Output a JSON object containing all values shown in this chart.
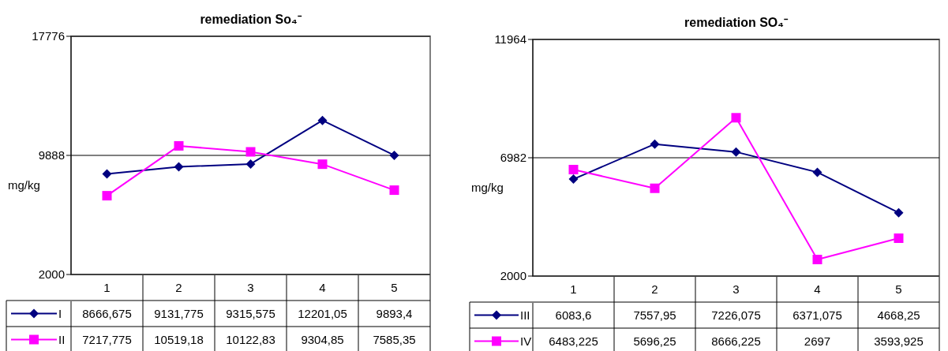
{
  "chart_data": [
    {
      "type": "line",
      "title": "remediation So₄⁻",
      "ylabel": "mg/kg",
      "categories": [
        "1",
        "2",
        "3",
        "4",
        "5"
      ],
      "ylim": [
        2000,
        17776
      ],
      "yticks": [
        2000,
        9888,
        17776
      ],
      "grid": "y",
      "legend": "bottom",
      "series": [
        {
          "name": "I",
          "color": "#000080",
          "marker": "diamond",
          "values": [
            8666.675,
            9131.775,
            9315.575,
            12201.05,
            9893.4
          ],
          "value_labels": [
            "8666,675",
            "9131,775",
            "9315,575",
            "12201,05",
            "9893,4"
          ]
        },
        {
          "name": "II",
          "color": "#ff00ff",
          "marker": "square",
          "values": [
            7217.775,
            10519.18,
            10122.83,
            9304.85,
            7585.35
          ],
          "value_labels": [
            "7217,775",
            "10519,18",
            "10122,83",
            "9304,85",
            "7585,35"
          ]
        }
      ]
    },
    {
      "type": "line",
      "title": "remediation SO₄⁻",
      "ylabel": "mg/kg",
      "categories": [
        "1",
        "2",
        "3",
        "4",
        "5"
      ],
      "ylim": [
        2000,
        11964
      ],
      "yticks": [
        2000,
        6982,
        11964
      ],
      "grid": "y",
      "legend": "bottom",
      "series": [
        {
          "name": "III",
          "color": "#000080",
          "marker": "diamond",
          "values": [
            6083.6,
            7557.95,
            7226.075,
            6371.075,
            4668.25
          ],
          "value_labels": [
            "6083,6",
            "7557,95",
            "7226,075",
            "6371,075",
            "4668,25"
          ]
        },
        {
          "name": "IV",
          "color": "#ff00ff",
          "marker": "square",
          "values": [
            6483.225,
            5696.25,
            8666.225,
            2697,
            3593.925
          ],
          "value_labels": [
            "6483,225",
            "5696,25",
            "8666,225",
            "2697",
            "3593,925"
          ]
        }
      ]
    }
  ]
}
